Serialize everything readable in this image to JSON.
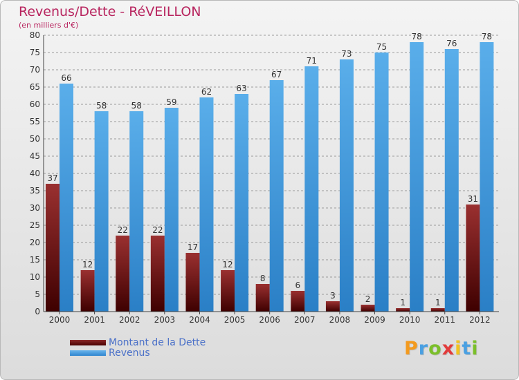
{
  "chart_data": {
    "type": "bar",
    "title": "Revenus/Dette - RéVEILLON",
    "subtitle": "(en milliers d'€)",
    "categories": [
      "2000",
      "2001",
      "2002",
      "2003",
      "2004",
      "2005",
      "2006",
      "2007",
      "2008",
      "2009",
      "2010",
      "2011",
      "2012"
    ],
    "series": [
      {
        "name": "Montant de la Dette",
        "values": [
          37,
          12,
          22,
          22,
          17,
          12,
          8,
          6,
          3,
          2,
          1,
          1,
          31
        ],
        "color": "#7a1010"
      },
      {
        "name": "Revenus",
        "values": [
          66,
          58,
          58,
          59,
          62,
          63,
          67,
          71,
          73,
          75,
          78,
          76,
          78
        ],
        "color": "#4aa0e2"
      }
    ],
    "ylim": [
      0,
      80
    ],
    "yticks": [
      0,
      5,
      10,
      15,
      20,
      25,
      30,
      35,
      40,
      45,
      50,
      55,
      60,
      65,
      70,
      75,
      80
    ],
    "grid": "horizontal dashed",
    "legend_position": "bottom-left"
  },
  "logo": {
    "letters": [
      "P",
      "r",
      "o",
      "x",
      "i",
      "t",
      "i"
    ],
    "colors": [
      "#f39a1e",
      "#4aa0e2",
      "#7bbf2a",
      "#e23b3b",
      "#f2c21e",
      "#4aa0e2",
      "#7bbf2a"
    ]
  }
}
